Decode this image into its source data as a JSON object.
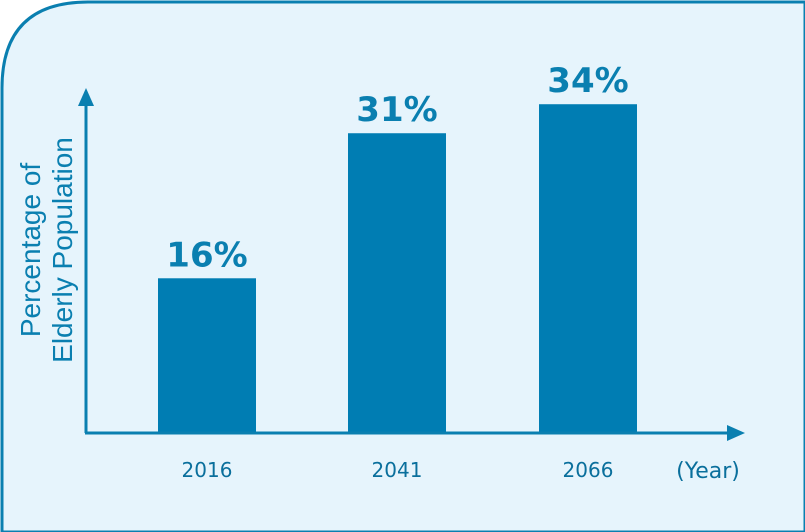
{
  "chart_data": {
    "type": "bar",
    "categories": [
      "2016",
      "2041",
      "2066"
    ],
    "values": [
      16,
      31,
      34
    ],
    "value_labels": [
      "16%",
      "31%",
      "34%"
    ],
    "ylabel_lines": [
      "Percentage of",
      "Elderly Population"
    ],
    "x_unit_label": "(Year)",
    "ylim": [
      0,
      40
    ],
    "grid": false,
    "colors": {
      "bar": "#007db3",
      "axis": "#0a7fb0",
      "panel_fill": "#e6f4fc",
      "panel_border": "#0a7fb0"
    }
  }
}
